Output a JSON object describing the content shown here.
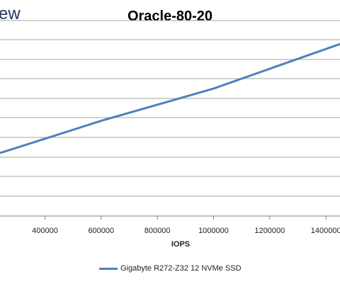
{
  "header": {
    "logo_text": "ew"
  },
  "chart_data": {
    "type": "line",
    "title": "Oracle-80-20",
    "xlabel": "IOPS",
    "ylabel": "",
    "x_ticks": [
      400000,
      600000,
      800000,
      1000000,
      1200000,
      1400000
    ],
    "x_tick_labels": [
      "400000",
      "600000",
      "800000",
      "1000000",
      "1200000",
      "1400000"
    ],
    "xlim": [
      240000,
      1450000
    ],
    "grid": true,
    "legend_position": "bottom",
    "colors": {
      "series": "#4f81bd",
      "grid": "#a6a6a6"
    },
    "series": [
      {
        "name": "Gigabyte R272-Z32 12 NVMe SSD",
        "x": [
          240000,
          600000,
          1000000,
          1450000
        ],
        "y": [
          0.322,
          0.487,
          0.652,
          0.88
        ]
      }
    ],
    "ylim": [
      0,
      1
    ]
  }
}
